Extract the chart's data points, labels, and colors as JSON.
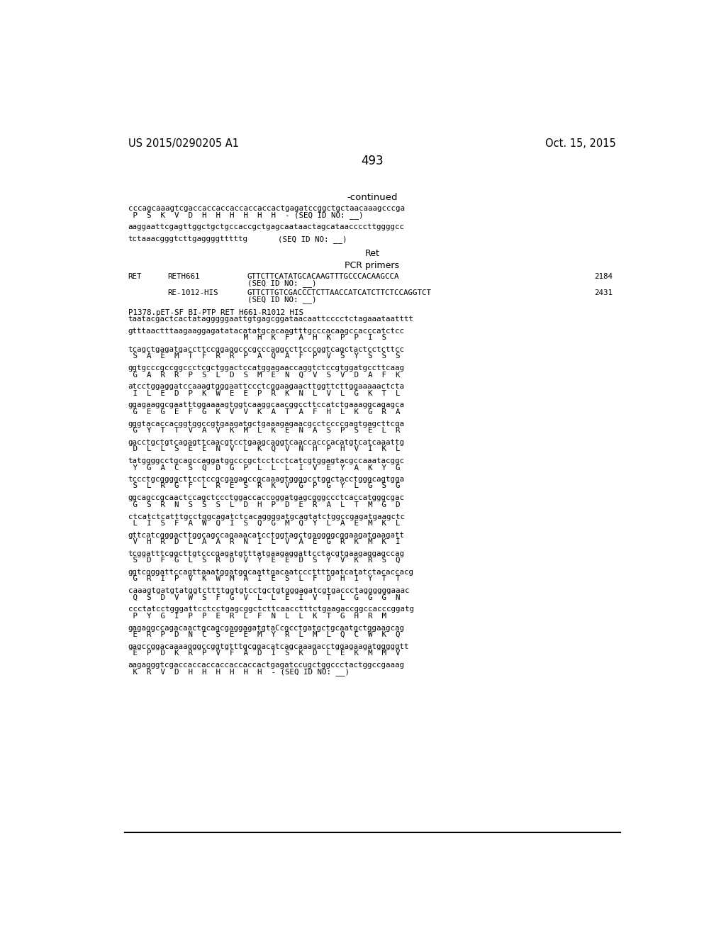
{
  "bg_color": "#ffffff",
  "header_left": "US 2015/0290205 A1",
  "header_right": "Oct. 15, 2015",
  "page_number": "493",
  "continued": "-continued",
  "top_seq1_dna": "cccagcaaagtcgaccaccaccaccaccaccactgagatccggctgctaacaaagcccga",
  "top_seq1_aa": " P  S  K  V  D  H  H  H  H  H  H  - (SEQ ID NO: __)",
  "top_seq2_dna": "aaggaattcgagttggctgctgccaccgctgagcaataactagcataaccccttggggcc",
  "top_seq3_dna": "tctaaacgggtcttgaggggtttttg",
  "top_seq3_seqid": "(SEQ ID NO: __)",
  "table_title": "Ret",
  "table_subtitle": "PCR primers",
  "table_rows": [
    {
      "col1": "RET",
      "col2": "RETH661",
      "col3": "GTTCTTCATATGCACAAGTTTGCCCACAAGCCA",
      "col3b": "(SEQ ID NO: __)",
      "col4": "2184"
    },
    {
      "col1": "",
      "col2": "RE-1012-HIS",
      "col3": "GTTCTTGTCGACCCTCTTAACCATCATCTTCTCCAGGTCT",
      "col3b": "(SEQ ID NO: __)",
      "col4": "2431"
    }
  ],
  "label1": "P1378.pET-SF BI-PTP RET H661-R1012 HIS",
  "label2": "taatacgactcactatagggggaattgtgagcggataacaattcccctctagaaataatttt",
  "sequence_blocks": [
    {
      "dna": "gtttaactttaagaaggagatatacatatgcacaagtttgcccacaagccacccatctcc",
      "aa": "                         M  H  K  F  A  H  K  P  P  I  S"
    },
    {
      "dna": "tcagctgagatgaccttccggaggcccgcccaggccttcccggtcagctactcctcttcc",
      "aa": " S  A  E  M  T  F  R  R  P  A  Q  A  F  P  V  S  Y  S  S  S"
    },
    {
      "dna": "ggtgcccgccggccctcgctggactccatggagaaccaggtctccgtggatgccttcaag",
      "aa": " G  A  R  R  P  S  L  D  S  M  E  N  Q  V  S  V  D  A  F  K"
    },
    {
      "dna": "atcctggaggatccaaagtgggaattccctcggaagaacttggttcttggaaaaactcta",
      "aa": " I  L  E  D  P  K  W  E  E  P  R  K  N  L  V  L  G  K  T  L"
    },
    {
      "dna": "ggagaaggcgaatttggaaaagtggtcaaggcaacggccttccatctgaaaggcagagca",
      "aa": " G  E  G  E  F  G  K  V  V  K  A  T  A  F  H  L  K  G  R  A"
    },
    {
      "dna": "gggtacaccacggtggccgtgaagatgctgaaagagaacgcctccccgagtgagcttcga",
      "aa": " G  Y  T  T  V  A  V  K  M  L  K  E  N  A  S  P  S  E  L  R"
    },
    {
      "dna": "gacctgctgtcagagttcaacgtcctgaagcaggtcaaccacccacatgtcatcaaattg",
      "aa": " D  L  L  S  E  E  N  V  L  K  Q  V  N  H  P  H  V  I  K  L"
    },
    {
      "dna": "tatggggcctgcagccaggatggcccgctcctcctcatcgtggagtacgccaaatacggc",
      "aa": " Y  G  A  C  S  Q  D  G  P  L  L  L  I  V  E  Y  A  K  Y  G"
    },
    {
      "dna": "tccctgcggggcttcctccgcgagagccgcaaagtggggcctggctacctgggcagtgga",
      "aa": " S  L  R  G  F  L  R  E  S  R  K  V  G  P  G  Y  L  G  S  G"
    },
    {
      "dna": "ggcagccgcaactccagctccctggaccaccoggatgagcgggccctcaccatgggcgac",
      "aa": " G  S  R  N  S  S  S  L  D  H  P  D  E  R  A  L  T  M  G  D"
    },
    {
      "dna": "ctcatctcatttgcctggcagatctcacaggggatgcagtatctggccgagatgaagctc",
      "aa": " L  I  S  F  A  W  Q  I  S  Q  G  M  Q  Y  L  A  E  M  K  L"
    },
    {
      "dna": "gttcatcgggacttggcagccagaaacatcctggtagctgaggggcggaagatgaagatt",
      "aa": " V  H  R  D  L  A  A  R  N  I  L  V  A  E  G  R  K  M  K  I"
    },
    {
      "dna": "tcggatttcggcttgtcccgagatgtttatgaagaggattcctacgtgaagaggagccag",
      "aa": " S  D  F  G  L  S  R  D  V  Y  E  E  D  S  Y  V  K  R  S  Q"
    },
    {
      "dna": "ggtcgggattccagttaaatggatggcaattgacaatcccttttgatcatatctacaccacg",
      "aa": " G  R  I  P  V  K  W  M  A  I  E  S  L  F  D  H  I  Y  T  T"
    },
    {
      "dna": "caaagtgatgtatggtcttttggtgtcctgctgtgggagatcgtgaccctaggggggaaac",
      "aa": " Q  S  D  V  W  S  F  G  V  L  L  E  I  V  T  L  G  G  G  N"
    },
    {
      "dna": "ccctatcctgggattcctcctgagcggctcttcaacctttctgaagaccggccacccggatg",
      "aa": " P  Y  G  I  P  P  E  R  L  F  N  L  L  K  T  G  H  R  M"
    },
    {
      "dna": "gagaggccagacaactgcagcgaggagatgtaCcgcctgatgctgcaatgctggaagcag",
      "aa": " E  R  P  D  N  C  S  E  E  M  Y  R  L  M  L  Q  C  W  K  Q"
    },
    {
      "dna": "gagccggacaaaagggccggtgtttgcggacatcagcaaagacctggagaagatgggggtt",
      "aa": " E  P  D  K  R  P  V  F  A  D  I  S  K  D  L  E  K  M  M  V"
    },
    {
      "dna": "aagagggtcgaccaccaccaccaccaccactgagatccugctggccctactggccgaaag",
      "aa": " K  R  V  D  H  H  H  H  H  H  - (SEQ ID NO: __)"
    }
  ]
}
